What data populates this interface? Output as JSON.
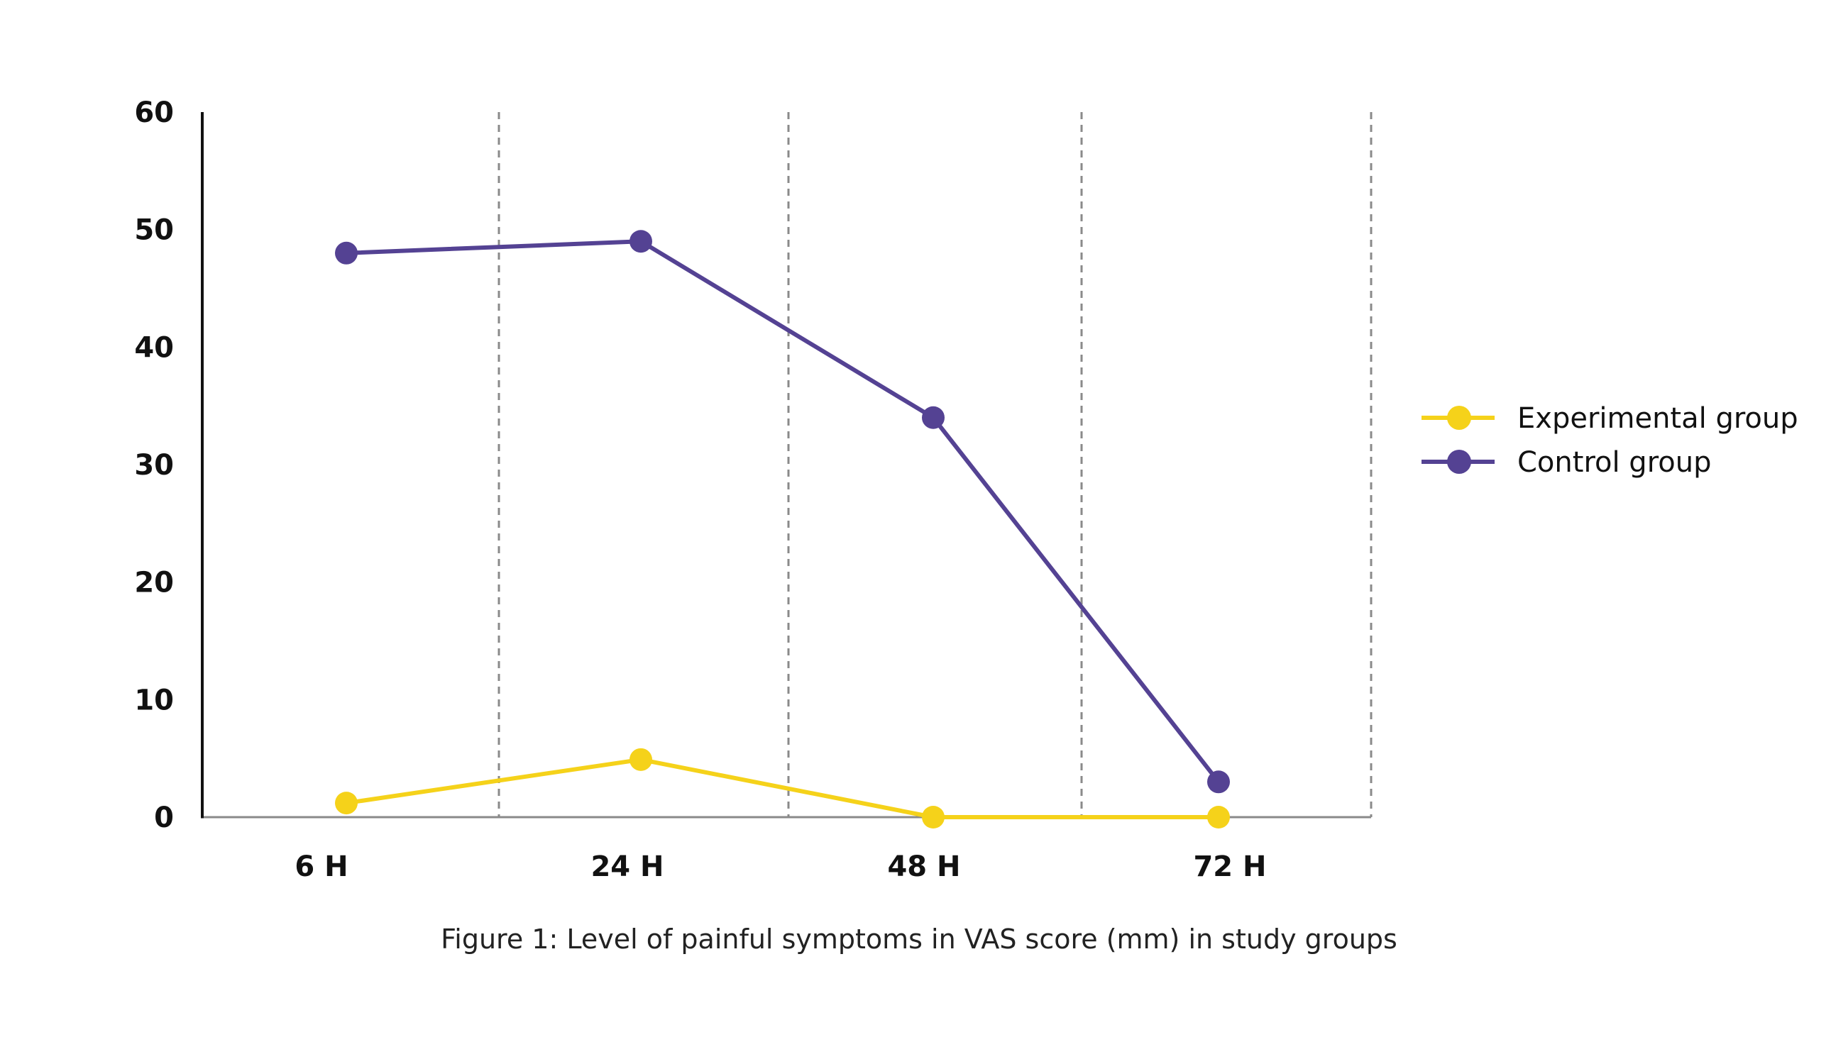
{
  "chart_data": {
    "type": "line",
    "title": "",
    "caption": "Figure 1: Level of painful symptoms in VAS score (mm) in study groups",
    "xlabel": "",
    "ylabel": "",
    "categories": [
      "6 H",
      "24 H",
      "48 H",
      "72 H"
    ],
    "ylim": [
      0,
      60
    ],
    "yticks": [
      0,
      10,
      20,
      30,
      40,
      50,
      60
    ],
    "grid": "vertical-dashed",
    "legend_position": "right",
    "series": [
      {
        "name": "Experimental group",
        "color": "#f5d21a",
        "values": [
          1.2,
          4.9,
          0,
          0
        ]
      },
      {
        "name": "Control group",
        "color": "#544293",
        "values": [
          48,
          49,
          34,
          3
        ]
      }
    ]
  }
}
